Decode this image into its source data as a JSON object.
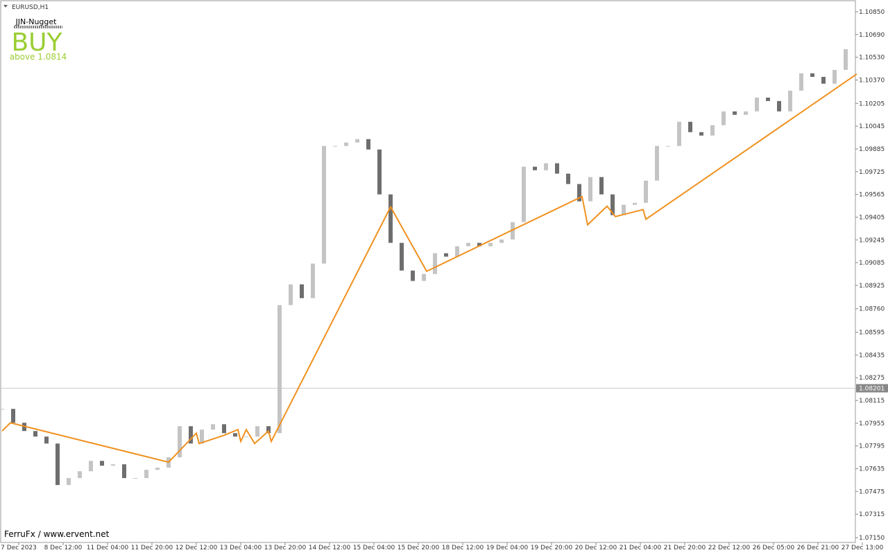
{
  "chart_data": {
    "type": "candlestick",
    "symbol": "EURUSD,H1",
    "indicator_name": "JJN-Nugget",
    "signal": "BUY",
    "signal_note": "above 1.0814",
    "footer": "FerruFx / www.ervent.net",
    "up_color": "#c4c4c4",
    "down_color": "#6e6e6e",
    "zigzag_color": "#f0901e",
    "xlim": [
      0,
      308
    ],
    "ylim": [
      1.07116,
      1.10928
    ],
    "candles": {
      "x": [
        0,
        4,
        8,
        12,
        16,
        20,
        24,
        28,
        32,
        36,
        40,
        44,
        48,
        52,
        56,
        60,
        64,
        68,
        72,
        76,
        80,
        84,
        88,
        92,
        96,
        100,
        104,
        108,
        112,
        116,
        120,
        124,
        128,
        132,
        136,
        140,
        144,
        148,
        152,
        156,
        160,
        164,
        168,
        172,
        176,
        180,
        184,
        188,
        192,
        196,
        200,
        204,
        208,
        212,
        216,
        220,
        224,
        228,
        232,
        236,
        240,
        244,
        248,
        252,
        256,
        260,
        264,
        268,
        272,
        276,
        280,
        284,
        288,
        292,
        296,
        300,
        304
      ],
      "close": [
        1.08056,
        1.07958,
        1.079,
        1.07861,
        1.07812,
        1.0752,
        1.07569,
        1.07617,
        1.0769,
        1.07656,
        1.07666,
        1.07569,
        1.07569,
        1.07627,
        1.07642,
        1.07715,
        1.07934,
        1.07812,
        1.0791,
        1.07948,
        1.07885,
        1.07861,
        1.07861,
        1.07934,
        1.07885,
        1.08786,
        1.08932,
        1.08835,
        1.09078,
        1.09906,
        1.09906,
        1.0993,
        1.09954,
        1.09881,
        1.09565,
        1.09224,
        1.09029,
        1.08956,
        1.09005,
        1.09151,
        1.09127,
        1.092,
        1.09224,
        1.092,
        1.09224,
        1.09248,
        1.0937,
        1.0976,
        1.09735,
        1.09784,
        1.09711,
        1.09638,
        1.09516,
        1.09687,
        1.09565,
        1.09419,
        1.09492,
        1.09506,
        1.09662,
        1.09906,
        1.09906,
        1.10076,
        1.10003,
        1.09979,
        1.10052,
        1.10149,
        1.10125,
        1.10149,
        1.10246,
        1.10222,
        1.10149,
        1.10295,
        1.10417,
        1.10392,
        1.10344,
        1.10441,
        1.10587
      ]
    },
    "zigzag": {
      "x": [
        0,
        3,
        60,
        70,
        71,
        80,
        85,
        86,
        88,
        91,
        96,
        97,
        140,
        153,
        209,
        211,
        218,
        221,
        231,
        232,
        308
      ],
      "values": [
        1.079,
        1.07958,
        1.07681,
        1.07885,
        1.07812,
        1.0787,
        1.0791,
        1.07827,
        1.0791,
        1.07812,
        1.079,
        1.07827,
        1.09477,
        1.09024,
        1.0955,
        1.09351,
        1.09482,
        1.09409,
        1.09458,
        1.0939,
        1.10412
      ]
    },
    "current_price": {
      "value": 1.08201,
      "label": "1.08201"
    },
    "yticks": [
      {
        "value": 1.1085,
        "label": "1.10850"
      },
      {
        "value": 1.1069,
        "label": "1.10690"
      },
      {
        "value": 1.1053,
        "label": "1.10530"
      },
      {
        "value": 1.1037,
        "label": "1.10370"
      },
      {
        "value": 1.10205,
        "label": "1.10205"
      },
      {
        "value": 1.10045,
        "label": "1.10045"
      },
      {
        "value": 1.09885,
        "label": "1.09885"
      },
      {
        "value": 1.09725,
        "label": "1.09725"
      },
      {
        "value": 1.09565,
        "label": "1.09565"
      },
      {
        "value": 1.09405,
        "label": "1.09405"
      },
      {
        "value": 1.09245,
        "label": "1.09245"
      },
      {
        "value": 1.09085,
        "label": "1.09085"
      },
      {
        "value": 1.08925,
        "label": "1.08925"
      },
      {
        "value": 1.0876,
        "label": "1.08760"
      },
      {
        "value": 1.08595,
        "label": "1.08595"
      },
      {
        "value": 1.08435,
        "label": "1.08435"
      },
      {
        "value": 1.08275,
        "label": "1.08275"
      },
      {
        "value": 1.08115,
        "label": "1.08115"
      },
      {
        "value": 1.07955,
        "label": "1.07955"
      },
      {
        "value": 1.07795,
        "label": "1.07795"
      },
      {
        "value": 1.07635,
        "label": "1.07635"
      },
      {
        "value": 1.07475,
        "label": "1.07475"
      },
      {
        "value": 1.07315,
        "label": "1.07315"
      },
      {
        "value": 1.0715,
        "label": "1.07150"
      }
    ],
    "xticks": [
      {
        "value": 6,
        "label": "7 Dec 2023"
      },
      {
        "value": 22,
        "label": "8 Dec 12:00"
      },
      {
        "value": 38,
        "label": "11 Dec 04:00"
      },
      {
        "value": 54,
        "label": "11 Dec 20:00"
      },
      {
        "value": 70,
        "label": "12 Dec 12:00"
      },
      {
        "value": 86,
        "label": "13 Dec 04:00"
      },
      {
        "value": 102,
        "label": "13 Dec 20:00"
      },
      {
        "value": 118,
        "label": "14 Dec 12:00"
      },
      {
        "value": 134,
        "label": "15 Dec 04:00"
      },
      {
        "value": 150,
        "label": "15 Dec 20:00"
      },
      {
        "value": 166,
        "label": "18 Dec 12:00"
      },
      {
        "value": 182,
        "label": "19 Dec 04:00"
      },
      {
        "value": 198,
        "label": "19 Dec 20:00"
      },
      {
        "value": 214,
        "label": "20 Dec 12:00"
      },
      {
        "value": 230,
        "label": "21 Dec 04:00"
      },
      {
        "value": 246,
        "label": "21 Dec 20:00"
      },
      {
        "value": 262,
        "label": "22 Dec 12:00"
      },
      {
        "value": 278,
        "label": "26 Dec 05:00"
      },
      {
        "value": 294,
        "label": "26 Dec 21:00"
      },
      {
        "value": 310,
        "label": "27 Dec 13:00"
      }
    ]
  }
}
